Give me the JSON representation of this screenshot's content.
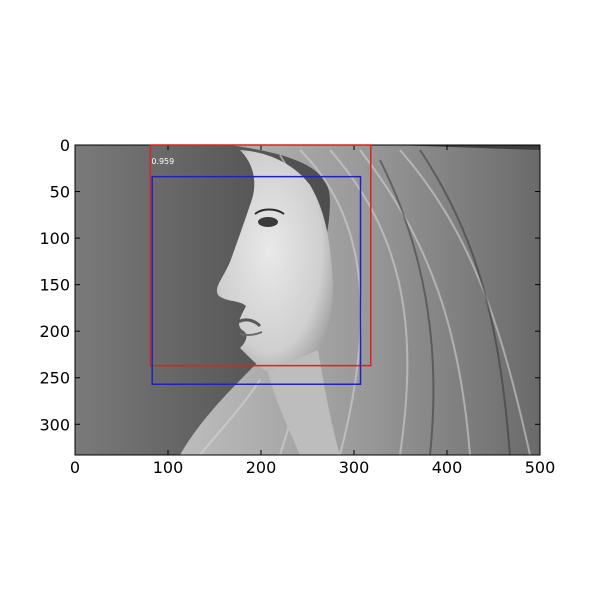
{
  "figure": {
    "image_description_name": "grayscale-portrait-photo",
    "image_extent": {
      "x": [
        0,
        500
      ],
      "y": [
        0,
        333
      ]
    },
    "x_ticks": [
      0,
      100,
      200,
      300,
      400,
      500
    ],
    "y_ticks": [
      0,
      50,
      100,
      150,
      200,
      250,
      300
    ],
    "x_tick_labels": [
      "0",
      "100",
      "200",
      "300",
      "400",
      "500"
    ],
    "y_tick_labels": [
      "0",
      "50",
      "100",
      "150",
      "200",
      "250",
      "300"
    ]
  },
  "detections": [
    {
      "name": "detection-box-red",
      "color": "#dd2222",
      "x0": 81,
      "y0": 0,
      "x1": 318,
      "y1": 237,
      "score": "0.959"
    },
    {
      "name": "ground-truth-box-blue",
      "color": "#2222bb",
      "x0": 83,
      "y0": 34,
      "x1": 307,
      "y1": 257,
      "score": ""
    }
  ]
}
